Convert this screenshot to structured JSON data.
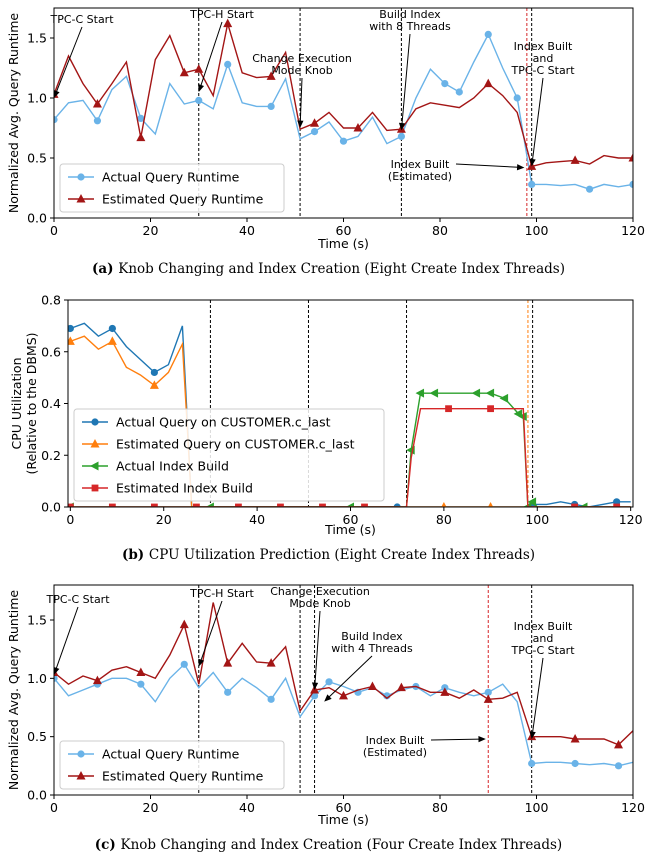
{
  "chart_data": [
    {
      "id": "a",
      "type": "line",
      "caption_letter": "(a)",
      "caption_text": "Knob Changing and Index Creation (Eight Create Index Threads)",
      "xlabel": "Time (s)",
      "ylabel": "Normalized Avg. Query Runtime",
      "xlim": [
        0,
        120
      ],
      "ylim": [
        0,
        1.75
      ],
      "xticks": [
        0,
        20,
        40,
        60,
        80,
        100,
        120
      ],
      "yticks": [
        0.0,
        0.5,
        1.0,
        1.5
      ],
      "ytick_labels": [
        "0.0",
        "0.5",
        "1.0",
        "1.5"
      ],
      "legend_position": "lower-left",
      "vlines": [
        {
          "x": 30,
          "color": "#000000"
        },
        {
          "x": 51,
          "color": "#000000"
        },
        {
          "x": 72,
          "color": "#000000"
        },
        {
          "x": 98,
          "color": "#d62728"
        },
        {
          "x": 99,
          "color": "#000000"
        }
      ],
      "series": [
        {
          "name": "Actual Query Runtime",
          "color": "#6ab3e8",
          "marker": "circle",
          "x": [
            0,
            3,
            6,
            9,
            12,
            15,
            18,
            21,
            24,
            27,
            30,
            33,
            36,
            39,
            42,
            45,
            48,
            51,
            54,
            57,
            60,
            63,
            66,
            69,
            72,
            75,
            78,
            81,
            84,
            87,
            90,
            93,
            96,
            99,
            102,
            105,
            108,
            111,
            114,
            117,
            120
          ],
          "y": [
            0.82,
            0.96,
            0.98,
            0.81,
            1.07,
            1.18,
            0.83,
            0.7,
            1.12,
            0.95,
            0.98,
            0.91,
            1.28,
            0.96,
            0.93,
            0.93,
            1.16,
            0.66,
            0.72,
            0.8,
            0.64,
            0.68,
            0.84,
            0.62,
            0.68,
            1.0,
            1.24,
            1.12,
            1.05,
            1.3,
            1.53,
            1.25,
            1.0,
            0.28,
            0.28,
            0.27,
            0.28,
            0.24,
            0.28,
            0.26,
            0.28
          ],
          "markers": [
            0,
            3,
            6,
            10,
            12,
            15,
            18,
            20,
            24,
            27,
            28,
            30,
            32,
            33,
            37,
            40
          ]
        },
        {
          "name": "Estimated Query Runtime",
          "color": "#a31515",
          "marker": "triangle",
          "x": [
            0,
            3,
            6,
            9,
            12,
            15,
            18,
            21,
            24,
            27,
            30,
            33,
            36,
            39,
            42,
            45,
            48,
            51,
            54,
            57,
            60,
            63,
            66,
            69,
            72,
            75,
            78,
            81,
            84,
            87,
            90,
            93,
            96,
            99,
            102,
            105,
            108,
            111,
            114,
            117,
            120
          ],
          "y": [
            1.03,
            1.35,
            1.12,
            0.95,
            1.12,
            1.3,
            0.67,
            1.32,
            1.52,
            1.21,
            1.24,
            1.02,
            1.62,
            1.21,
            1.17,
            1.18,
            1.38,
            0.74,
            0.79,
            0.88,
            0.75,
            0.75,
            0.88,
            0.73,
            0.74,
            0.91,
            0.96,
            0.94,
            0.92,
            1.0,
            1.12,
            1.02,
            0.88,
            0.43,
            0.46,
            0.47,
            0.48,
            0.45,
            0.52,
            0.5,
            0.5
          ],
          "markers": [
            0,
            3,
            6,
            9,
            10,
            12,
            15,
            18,
            21,
            24,
            30,
            33,
            36,
            40
          ]
        }
      ],
      "annotations": [
        {
          "lines": [
            "TPC-C Start"
          ],
          "point": [
            0,
            1.0
          ]
        },
        {
          "lines": [
            "TPC-H Start"
          ],
          "point": [
            30,
            1.05
          ]
        },
        {
          "lines": [
            "Change Execution",
            "Mode Knob"
          ],
          "point": [
            51,
            0.75
          ]
        },
        {
          "lines": [
            "Build Index",
            "with 8 Threads"
          ],
          "point": [
            72,
            0.73
          ]
        },
        {
          "lines": [
            "Index Built",
            "and",
            "TPC-C Start"
          ],
          "point": [
            99,
            0.43
          ]
        },
        {
          "lines": [
            "Index Built",
            "(Estimated)"
          ],
          "point": [
            97.5,
            0.42
          ]
        }
      ]
    },
    {
      "id": "b",
      "type": "line",
      "caption_letter": "(b)",
      "caption_text": "CPU Utilization Prediction (Eight Create Index Threads)",
      "xlabel": "Time (s)",
      "ylabel": "CPU Utilization",
      "ylabel2": "(Relative to the DBMS)",
      "xlim": [
        -0.5,
        120.5
      ],
      "ylim": [
        0,
        0.8
      ],
      "xticks": [
        0,
        20,
        40,
        60,
        80,
        100,
        120
      ],
      "yticks": [
        0.0,
        0.2,
        0.4,
        0.6,
        0.8
      ],
      "ytick_labels": [
        "0.0",
        "0.2",
        "0.4",
        "0.6",
        "0.8"
      ],
      "legend_position": "lower-left",
      "vlines": [
        {
          "x": 30,
          "color": "#000000"
        },
        {
          "x": 51,
          "color": "#000000"
        },
        {
          "x": 72,
          "color": "#000000"
        },
        {
          "x": 98,
          "color": "#ff7f0e"
        },
        {
          "x": 99,
          "color": "#000000"
        }
      ],
      "series": [
        {
          "name": "Actual Query on CUSTOMER.c_last",
          "color": "#1f77b4",
          "marker": "circle",
          "x": [
            0,
            3,
            6,
            9,
            12,
            15,
            18,
            21,
            24,
            25,
            26,
            27,
            30,
            40,
            50,
            60,
            70,
            80,
            90,
            97,
            98,
            99,
            102,
            105,
            108,
            111,
            114,
            117,
            120
          ],
          "y": [
            0.69,
            0.71,
            0.66,
            0.69,
            0.62,
            0.57,
            0.52,
            0.55,
            0.7,
            0.35,
            0.0,
            0.0,
            0.0,
            0.0,
            0.0,
            0.0,
            0.0,
            0.0,
            0.0,
            0.0,
            0.0,
            0.01,
            0.01,
            0.02,
            0.01,
            0.0,
            0.01,
            0.02,
            0.02
          ],
          "markers": [
            0,
            3,
            6,
            16,
            21,
            24,
            27
          ]
        },
        {
          "name": "Estimated Query on CUSTOMER.c_last",
          "color": "#ff7f0e",
          "marker": "triangle",
          "x": [
            0,
            3,
            6,
            9,
            12,
            15,
            18,
            21,
            24,
            25,
            26,
            27,
            30,
            40,
            50,
            60,
            70,
            80,
            90,
            97,
            98,
            99,
            102,
            105,
            108,
            111,
            114,
            117,
            120
          ],
          "y": [
            0.64,
            0.66,
            0.61,
            0.64,
            0.54,
            0.51,
            0.47,
            0.52,
            0.63,
            0.32,
            0.0,
            0.0,
            0.0,
            0.0,
            0.0,
            0.0,
            0.0,
            0.0,
            0.0,
            0.0,
            0.0,
            0.0,
            0.0,
            0.0,
            0.0,
            0.0,
            0.0,
            0.0,
            0.0
          ],
          "markers": [
            0,
            3,
            6,
            17,
            18
          ]
        },
        {
          "name": "Actual Index Build",
          "color": "#2ca02c",
          "marker": "triangle-left",
          "x": [
            0,
            10,
            20,
            30,
            40,
            50,
            60,
            70,
            72,
            73,
            75,
            78,
            81,
            84,
            87,
            90,
            93,
            96,
            97,
            98,
            99,
            100,
            110,
            120
          ],
          "y": [
            0,
            0,
            0,
            0,
            0,
            0,
            0,
            0,
            0,
            0.22,
            0.44,
            0.44,
            0.44,
            0.44,
            0.44,
            0.44,
            0.42,
            0.36,
            0.35,
            0.0,
            0.02,
            0.0,
            0.0,
            0.0
          ],
          "markers": [
            0,
            3,
            6,
            9,
            10,
            11,
            14,
            15,
            16,
            17,
            18,
            19,
            20,
            22
          ]
        },
        {
          "name": "Estimated Index Build",
          "color": "#d62728",
          "marker": "square",
          "x": [
            0,
            9,
            18,
            27,
            36,
            45,
            54,
            63,
            72,
            73,
            75,
            78,
            81,
            84,
            87,
            90,
            93,
            96,
            97,
            98,
            99,
            108,
            117,
            120
          ],
          "y": [
            0,
            0,
            0,
            0,
            0,
            0,
            0,
            0,
            0,
            0.19,
            0.38,
            0.38,
            0.38,
            0.38,
            0.38,
            0.38,
            0.38,
            0.38,
            0.38,
            0.0,
            0.0,
            0.0,
            0.0,
            0.0
          ],
          "markers": [
            0,
            1,
            2,
            3,
            4,
            5,
            6,
            7,
            12,
            15,
            21,
            22
          ]
        }
      ]
    },
    {
      "id": "c",
      "type": "line",
      "caption_letter": "(c)",
      "caption_text": "Knob Changing and Index Creation (Four Create Index Threads)",
      "xlabel": "Time (s)",
      "ylabel": "Normalized Avg. Query Runtime",
      "xlim": [
        0,
        120
      ],
      "ylim": [
        0,
        1.8
      ],
      "xticks": [
        0,
        20,
        40,
        60,
        80,
        100,
        120
      ],
      "yticks": [
        0.0,
        0.5,
        1.0,
        1.5
      ],
      "ytick_labels": [
        "0.0",
        "0.5",
        "1.0",
        "1.5"
      ],
      "legend_position": "lower-left",
      "vlines": [
        {
          "x": 30,
          "color": "#000000"
        },
        {
          "x": 51,
          "color": "#000000"
        },
        {
          "x": 54,
          "color": "#000000"
        },
        {
          "x": 90,
          "color": "#d62728"
        },
        {
          "x": 99,
          "color": "#000000"
        }
      ],
      "series": [
        {
          "name": "Actual Query Runtime",
          "color": "#6ab3e8",
          "marker": "circle",
          "x": [
            0,
            3,
            6,
            9,
            12,
            15,
            18,
            21,
            24,
            27,
            30,
            33,
            36,
            39,
            42,
            45,
            48,
            51,
            54,
            57,
            60,
            63,
            66,
            69,
            72,
            75,
            78,
            81,
            84,
            87,
            90,
            93,
            96,
            99,
            102,
            105,
            108,
            111,
            114,
            117,
            120
          ],
          "y": [
            1.0,
            0.85,
            0.9,
            0.95,
            1.0,
            1.0,
            0.95,
            0.8,
            1.0,
            1.12,
            0.92,
            1.05,
            0.88,
            1.0,
            0.92,
            0.82,
            1.0,
            0.67,
            0.85,
            0.97,
            0.93,
            0.88,
            0.92,
            0.85,
            0.9,
            0.93,
            0.85,
            0.92,
            0.88,
            0.85,
            0.88,
            0.95,
            0.8,
            0.27,
            0.28,
            0.28,
            0.27,
            0.26,
            0.27,
            0.25,
            0.28
          ],
          "markers": [
            0,
            3,
            6,
            9,
            12,
            15,
            18,
            19,
            21,
            23,
            25,
            27,
            30,
            33,
            36,
            39
          ]
        },
        {
          "name": "Estimated Query Runtime",
          "color": "#a31515",
          "marker": "triangle",
          "x": [
            0,
            3,
            6,
            9,
            12,
            15,
            18,
            21,
            24,
            27,
            30,
            33,
            36,
            39,
            42,
            45,
            48,
            51,
            54,
            57,
            60,
            63,
            66,
            69,
            72,
            75,
            78,
            81,
            84,
            87,
            90,
            93,
            96,
            99,
            102,
            105,
            108,
            111,
            114,
            117,
            120
          ],
          "y": [
            1.05,
            0.95,
            1.02,
            0.98,
            1.07,
            1.1,
            1.05,
            1.0,
            1.2,
            1.46,
            0.95,
            1.65,
            1.13,
            1.3,
            1.14,
            1.13,
            1.27,
            0.72,
            0.9,
            0.92,
            0.85,
            0.9,
            0.93,
            0.83,
            0.92,
            0.93,
            0.88,
            0.88,
            0.83,
            0.9,
            0.82,
            0.83,
            0.88,
            0.5,
            0.5,
            0.5,
            0.48,
            0.48,
            0.48,
            0.43,
            0.55
          ],
          "markers": [
            0,
            3,
            6,
            9,
            12,
            15,
            18,
            20,
            22,
            24,
            27,
            30,
            33,
            36,
            39
          ]
        }
      ],
      "annotations": [
        {
          "lines": [
            "TPC-C Start"
          ],
          "point": [
            0,
            1.03
          ]
        },
        {
          "lines": [
            "TPC-H Start"
          ],
          "point": [
            30,
            1.1
          ]
        },
        {
          "lines": [
            "Change Execution",
            "Mode Knob"
          ],
          "point": [
            54,
            0.9
          ]
        },
        {
          "lines": [
            "Build Index",
            "with 4 Threads"
          ],
          "point": [
            56,
            0.8
          ]
        },
        {
          "lines": [
            "Index Built",
            "and",
            "TPC-C Start"
          ],
          "point": [
            99,
            0.48
          ]
        },
        {
          "lines": [
            "Index Built",
            "(Estimated)"
          ],
          "point": [
            89.5,
            0.48
          ]
        }
      ]
    }
  ]
}
